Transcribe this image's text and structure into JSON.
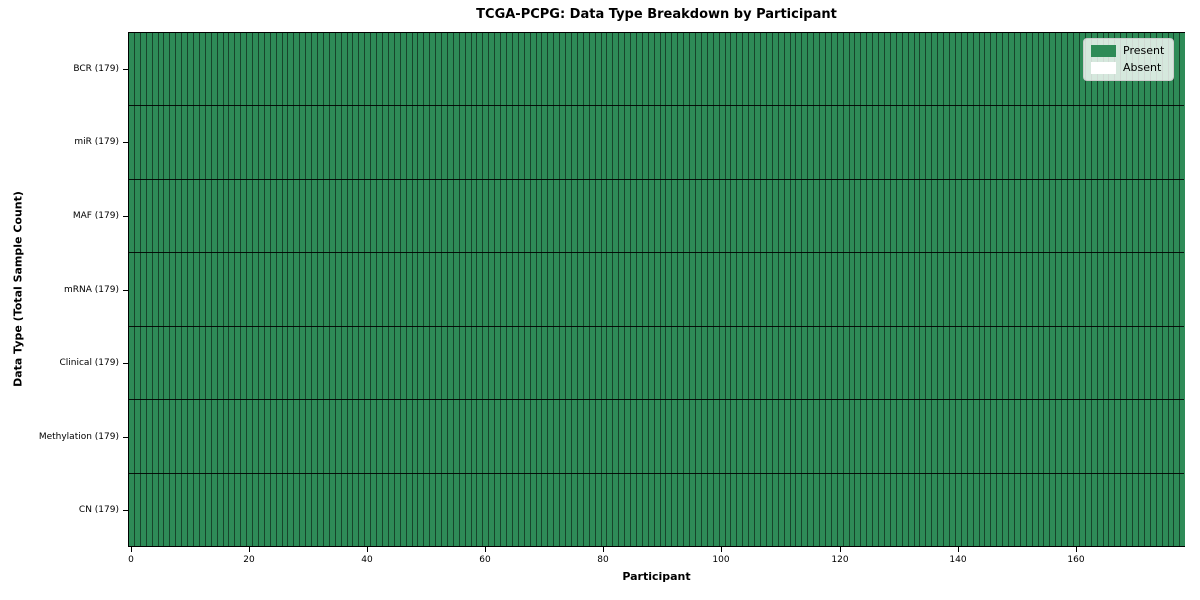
{
  "chart_data": {
    "type": "heatmap",
    "title": "TCGA-PCPG: Data Type Breakdown by Participant",
    "xlabel": "Participant",
    "ylabel": "Data Type (Total Sample Count)",
    "n_participants": 179,
    "x_ticks": [
      0,
      20,
      40,
      60,
      80,
      100,
      120,
      140,
      160
    ],
    "x_range": [
      0,
      179
    ],
    "grid": true,
    "legend_position": "upper right",
    "legend": [
      {
        "label": "Present",
        "color": "#2e8b57"
      },
      {
        "label": "Absent",
        "color": "#ffffff"
      }
    ],
    "rows": [
      {
        "label": "BCR (179)",
        "data_type": "BCR",
        "total_sample_count": 179,
        "present_count": 179,
        "absent_count": 0
      },
      {
        "label": "miR (179)",
        "data_type": "miR",
        "total_sample_count": 179,
        "present_count": 179,
        "absent_count": 0
      },
      {
        "label": "MAF (179)",
        "data_type": "MAF",
        "total_sample_count": 179,
        "present_count": 179,
        "absent_count": 0
      },
      {
        "label": "mRNA (179)",
        "data_type": "mRNA",
        "total_sample_count": 179,
        "present_count": 179,
        "absent_count": 0
      },
      {
        "label": "Clinical (179)",
        "data_type": "Clinical",
        "total_sample_count": 179,
        "present_count": 179,
        "absent_count": 0
      },
      {
        "label": "Methylation (179)",
        "data_type": "Methylation",
        "total_sample_count": 179,
        "present_count": 179,
        "absent_count": 0
      },
      {
        "label": "CN (179)",
        "data_type": "CN",
        "total_sample_count": 179,
        "present_count": 179,
        "absent_count": 0
      }
    ],
    "colors": {
      "present": "#2e8b57",
      "absent": "#ffffff",
      "cell_edge": "rgba(0,0,0,0.5)",
      "row_separator": "rgba(0,0,0,0.88)",
      "spine": "#000000"
    }
  }
}
